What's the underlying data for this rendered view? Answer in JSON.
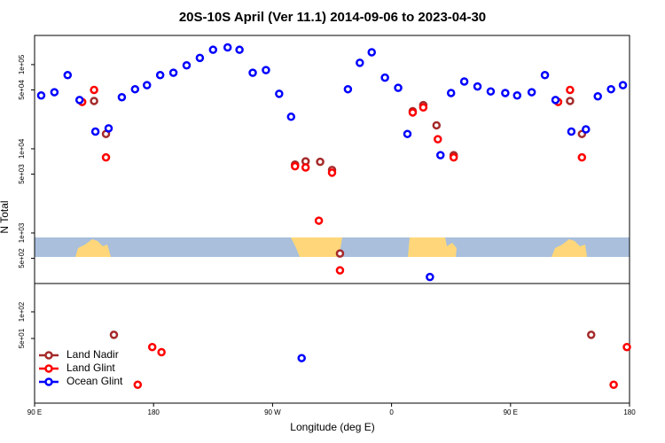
{
  "chart_data": [
    {
      "type": "scatter",
      "title": "20S-10S April (Ver 11.1)   2014-09-06 to 2023-04-30",
      "y_label": "N Total",
      "log_y": true,
      "xlim": [
        90,
        540
      ],
      "ylim": [
        251,
        222000
      ],
      "yticks": [
        {
          "value": 100000,
          "label": "1e+05"
        },
        {
          "value": 50000,
          "label": "5e+04"
        },
        {
          "value": 10000,
          "label": "1e+04"
        },
        {
          "value": 5000,
          "label": "5e+03"
        },
        {
          "value": 1000,
          "label": "1e+03"
        },
        {
          "value": 500,
          "label": "5e+02"
        }
      ],
      "series": [
        {
          "color": "#a52a2a",
          "x": [
            135,
            144,
            287,
            295,
            306,
            315,
            376,
            384,
            394,
            407,
            495,
            504,
            321
          ],
          "values": [
            37000,
            15000,
            6500,
            7100,
            7000,
            5600,
            28000,
            33000,
            19000,
            8400,
            37000,
            15000,
            570
          ]
        },
        {
          "color": "#ff0000",
          "x": [
            126,
            135,
            144,
            287,
            295,
            315,
            305,
            321,
            376,
            384,
            395,
            407,
            486,
            495,
            504
          ],
          "values": [
            36000,
            50000,
            7900,
            6200,
            6000,
            5200,
            1400,
            360,
            27000,
            31000,
            13000,
            7900,
            36000,
            50000,
            7900
          ]
        },
        {
          "color": "#0000ff",
          "x": [
            95,
            105,
            115,
            124,
            136,
            146,
            156,
            166,
            175,
            185,
            195,
            205,
            215,
            225,
            236,
            245,
            255,
            265,
            275,
            284,
            327,
            336,
            345,
            355,
            365,
            372,
            397,
            405,
            415,
            425,
            435,
            446,
            455,
            466,
            476,
            484,
            496,
            507,
            516,
            526,
            535,
            389
          ],
          "values": [
            43000,
            47000,
            75000,
            38000,
            16000,
            17500,
            41000,
            51000,
            57000,
            75000,
            80000,
            98000,
            120000,
            150000,
            160000,
            150000,
            80000,
            86000,
            45000,
            24000,
            51000,
            105000,
            140000,
            70000,
            53000,
            15000,
            8400,
            46000,
            63000,
            55000,
            48000,
            46000,
            43000,
            47000,
            75000,
            38000,
            16000,
            17000,
            42000,
            51000,
            57000,
            300
          ]
        }
      ]
    },
    {
      "type": "scatter",
      "x_label": "Longitude (deg E)",
      "log_y": true,
      "legend": "lower left",
      "xlim": [
        90,
        540
      ],
      "ylim": [
        9.3,
        209
      ],
      "xticks": [
        {
          "value": 90,
          "label": "90 E"
        },
        {
          "value": 180,
          "label": "180"
        },
        {
          "value": 270,
          "label": "90 W"
        },
        {
          "value": 360,
          "label": "0"
        },
        {
          "value": 450,
          "label": "90 E"
        },
        {
          "value": 540,
          "label": "180"
        }
      ],
      "yticks": [
        {
          "value": 100,
          "label": "1e+02"
        },
        {
          "value": 50,
          "label": "5e+01"
        }
      ],
      "series": [
        {
          "name": "Land Nadir",
          "color": "#a52a2a",
          "x": [
            150,
            511
          ],
          "values": [
            55,
            55
          ]
        },
        {
          "name": "Land Glint",
          "color": "#ff0000",
          "x": [
            179,
            186,
            168,
            528,
            538
          ],
          "values": [
            40,
            35,
            15,
            15,
            40
          ]
        },
        {
          "name": "Ocean Glint",
          "color": "#0000ff",
          "x": [
            292
          ],
          "values": [
            30
          ]
        }
      ]
    }
  ]
}
